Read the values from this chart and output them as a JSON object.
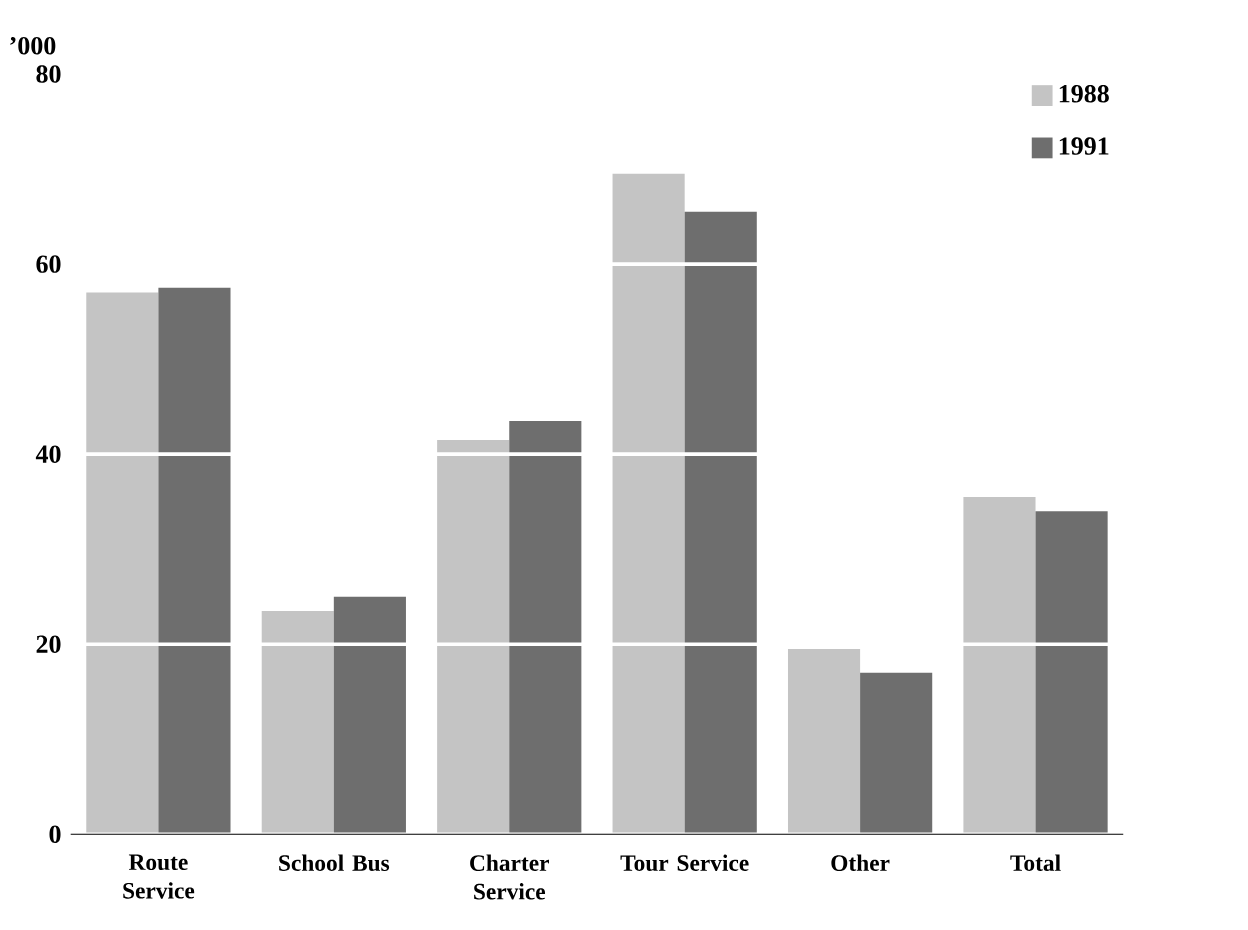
{
  "chart_data": {
    "type": "bar",
    "ylabel": "’000",
    "categories": [
      "Route Service",
      "School Bus",
      "Charter Service",
      "Tour Service",
      "Other",
      "Total"
    ],
    "series": [
      {
        "name": "1988",
        "color": "#c4c4c4",
        "values": [
          57,
          23.5,
          41.5,
          69.5,
          19.5,
          35.5
        ]
      },
      {
        "name": "1991",
        "color": "#6e6e6e",
        "values": [
          57.5,
          25,
          43.5,
          65.5,
          17,
          34
        ]
      }
    ],
    "ylim": [
      0,
      80
    ],
    "yticks": [
      0,
      20,
      40,
      60,
      80
    ],
    "grid": "y",
    "legend": "top right"
  }
}
